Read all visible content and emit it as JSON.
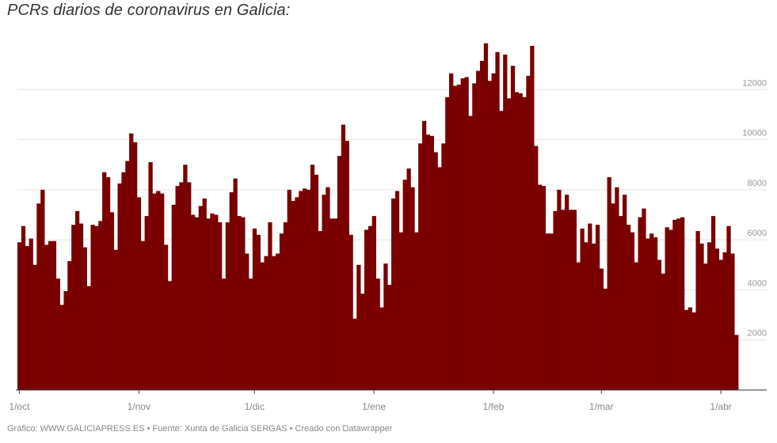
{
  "header": {
    "title": "PCRs diarios de coronavirus en Galicia:"
  },
  "footer": {
    "text": "Gráfico: WWW.GALICIAPRESS.ES • Fuente: Xunta de Galicia SERGAS • Creado con Datawrapper"
  },
  "colors": {
    "bar": "#7a0000",
    "grid": "#e6e6e6",
    "axis": "#333333"
  },
  "chart_data": {
    "type": "bar",
    "title": "PCRs diarios de coronavirus en Galicia:",
    "xlabel": "",
    "ylabel": "",
    "x_start": "2020-10-01",
    "ylim": [
      0,
      14000
    ],
    "y_ticks": [
      2000,
      4000,
      6000,
      8000,
      10000,
      12000
    ],
    "y_tick_labels": [
      "2000",
      "4000",
      "6000",
      "8000",
      "10000",
      "12000"
    ],
    "x_ticks": [
      {
        "label": "1/oct",
        "date": "2020-10-01"
      },
      {
        "label": "1/nov",
        "date": "2020-11-01"
      },
      {
        "label": "1/dic",
        "date": "2020-12-01"
      },
      {
        "label": "1/ene",
        "date": "2021-01-01"
      },
      {
        "label": "1/feb",
        "date": "2021-02-01"
      },
      {
        "label": "1/mar",
        "date": "2021-03-01"
      },
      {
        "label": "1/abr",
        "date": "2021-04-01"
      }
    ],
    "grid": "horizontal",
    "series": [
      {
        "values": [
          5900,
          6550,
          5750,
          6050,
          5000,
          7450,
          8000,
          5800,
          5950,
          5950,
          4450,
          3400,
          3950,
          5150,
          6600,
          7150,
          6650,
          5700,
          4150,
          6600,
          6550,
          6750,
          8700,
          8500,
          7100,
          5600,
          8250,
          8700,
          9150,
          10250,
          9900,
          7700,
          5950,
          6950,
          9100,
          7850,
          7950,
          7850,
          5800,
          4350,
          7400,
          8150,
          8300,
          9000,
          8300,
          7000,
          6900,
          7350,
          7650,
          6850,
          7050,
          7000,
          6700,
          4450,
          6700,
          7900,
          8450,
          6950,
          6900,
          5450,
          4450,
          6450,
          6200,
          5100,
          5350,
          6700,
          5350,
          5450,
          6250,
          6700,
          8000,
          7550,
          7700,
          7950,
          8050,
          8000,
          9000,
          8600,
          6350,
          7800,
          8100,
          6850,
          6850,
          9350,
          10600,
          9950,
          6200,
          2850,
          5000,
          3850,
          6400,
          6550,
          6950,
          4450,
          3300,
          5050,
          4200,
          7650,
          7950,
          6300,
          8400,
          8850,
          8100,
          6300,
          9850,
          10750,
          10200,
          10150,
          9500,
          8900,
          9850,
          11700,
          12650,
          12150,
          12200,
          12450,
          12500,
          10950,
          12250,
          12750,
          13150,
          13850,
          12350,
          12650,
          13500,
          11150,
          13400,
          11650,
          12950,
          11900,
          11850,
          11700,
          12550,
          13750,
          9750,
          8200,
          8150,
          6250,
          6250,
          7150,
          8000,
          7200,
          7800,
          7200,
          7200,
          5100,
          6450,
          5900,
          6650,
          5850,
          6600,
          4850,
          4050,
          8500,
          7450,
          8100,
          6950,
          7800,
          6600,
          6300,
          5100,
          6900,
          7250,
          6050,
          6250,
          6100,
          5200,
          4650,
          6500,
          6400,
          6800,
          6850,
          6900,
          3200,
          3300,
          3100,
          6350,
          5850,
          5050,
          5900,
          6950,
          5650,
          5200,
          5500,
          6550,
          5450,
          2200
        ]
      }
    ]
  }
}
